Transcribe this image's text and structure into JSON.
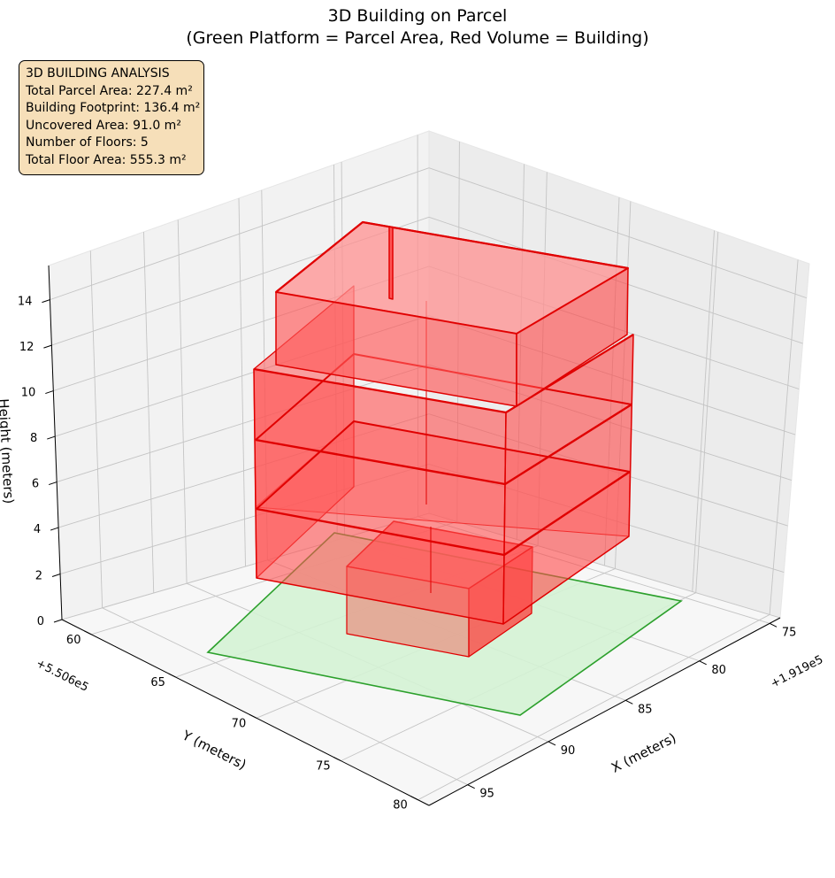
{
  "chart_data": {
    "type": "3d-bar",
    "title": "3D Building on Parcel",
    "subtitle": "(Green Platform = Parcel Area, Red Volume = Building)",
    "xlabel": "X (meters)",
    "ylabel": "Y (meters)",
    "zlabel": "Height (meters)",
    "x_offset_label": "+1.919e5",
    "y_offset_label": "+5.506e5",
    "x_ticks": [
      "75",
      "80",
      "85",
      "90",
      "95"
    ],
    "y_ticks": [
      "60",
      "65",
      "70",
      "75",
      "80"
    ],
    "z_ticks": [
      "0",
      "2",
      "4",
      "6",
      "8",
      "10",
      "12",
      "14"
    ],
    "grid": true,
    "series": [
      {
        "name": "Parcel Area",
        "color": "#2ca02c",
        "fill": "#d4f2d4"
      },
      {
        "name": "Building",
        "color": "#e00000",
        "fill": "#ff5a5a"
      }
    ],
    "info_box": {
      "title": "3D BUILDING ANALYSIS",
      "total_parcel_area": "Total Parcel Area: 227.4 m²",
      "building_footprint": "Building Footprint: 136.4 m²",
      "uncovered_area": "Uncovered Area: 91.0 m²",
      "number_of_floors": "Number of Floors: 5",
      "total_floor_area": "Total Floor Area: 555.3 m²"
    }
  }
}
